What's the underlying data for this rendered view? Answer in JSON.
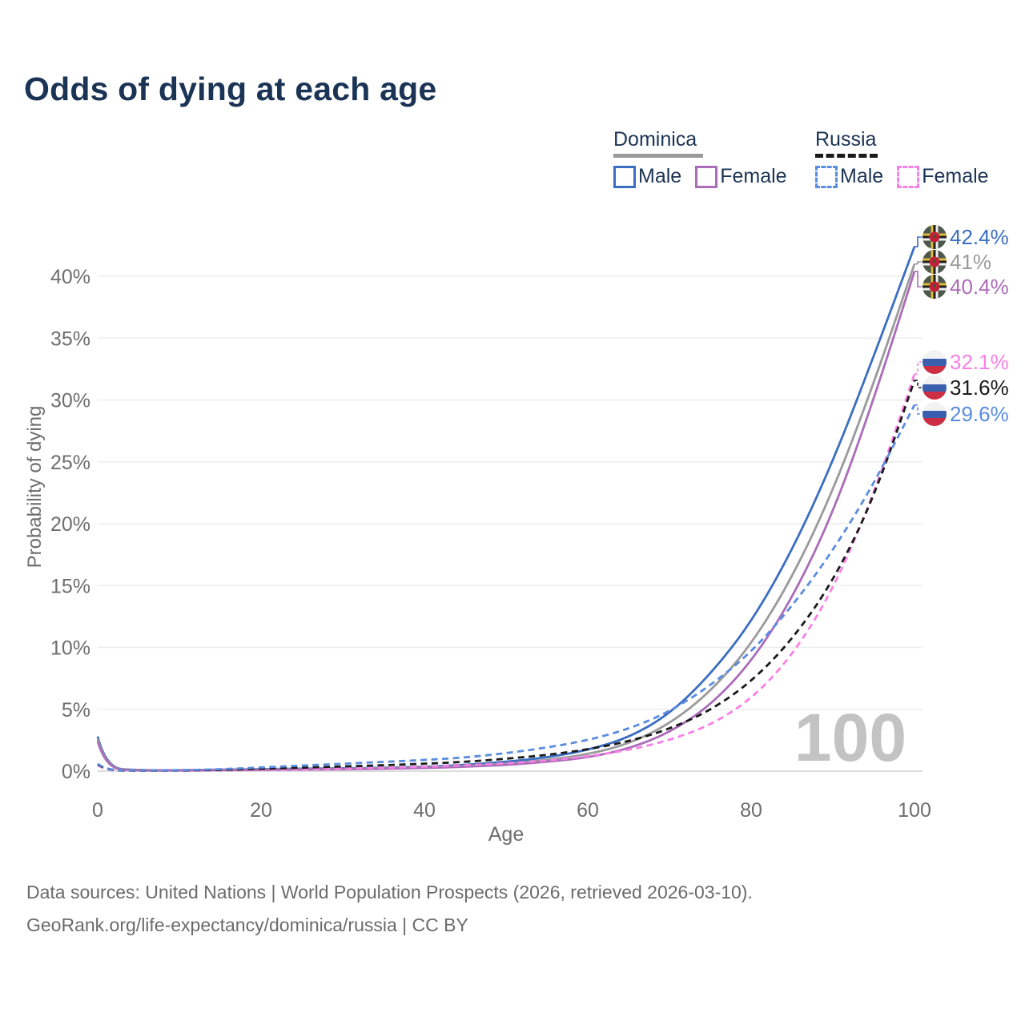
{
  "title": "Odds of dying at each age",
  "watermark": "100",
  "legend": {
    "groups": [
      {
        "country": "Dominica",
        "line_style": "solid",
        "underline_color": "#9a9a9a",
        "items": [
          {
            "label": "Male",
            "color": "#3b6ec1"
          },
          {
            "label": "Female",
            "color": "#ab6cb8"
          }
        ]
      },
      {
        "country": "Russia",
        "line_style": "dashed",
        "underline_color": "#1a1a1a",
        "items": [
          {
            "label": "Male",
            "color": "#5a8ce0"
          },
          {
            "label": "Female",
            "color": "#f980e6"
          }
        ]
      }
    ]
  },
  "chart_data": {
    "type": "line",
    "title": "Odds of dying at each age",
    "xlabel": "Age",
    "ylabel": "Probability of dying",
    "xlim": [
      0,
      100
    ],
    "ylim_percent": [
      0,
      43.5
    ],
    "grid": "horizontal",
    "x_ticks": [
      0,
      20,
      40,
      60,
      80,
      100
    ],
    "y_ticks_percent": [
      0,
      5,
      10,
      15,
      20,
      25,
      30,
      35,
      40
    ],
    "y_tick_labels": [
      "0%",
      "5%",
      "10%",
      "15%",
      "20%",
      "25%",
      "30%",
      "35%",
      "40%"
    ],
    "ages": [
      0,
      1,
      5,
      10,
      15,
      20,
      25,
      30,
      35,
      40,
      45,
      50,
      55,
      60,
      65,
      70,
      75,
      80,
      85,
      90,
      95,
      100
    ],
    "series": [
      {
        "name": "Dominica Male",
        "country": "Dominica",
        "flag": "dominica",
        "color": "#3b6ec1",
        "dash": false,
        "end_label": "42.4%",
        "end_value_percent": 42.4,
        "values_percent": [
          2.8,
          0.25,
          0.07,
          0.07,
          0.12,
          0.17,
          0.2,
          0.23,
          0.28,
          0.35,
          0.5,
          0.75,
          1.1,
          1.7,
          2.7,
          4.6,
          7.8,
          12.0,
          17.8,
          25.0,
          33.5,
          42.4
        ]
      },
      {
        "name": "Dominica Both sexes",
        "country": "Dominica",
        "flag": "dominica",
        "color": "#9a9a9a",
        "dash": false,
        "end_label": "41%",
        "end_value_percent": 41,
        "values_percent": [
          2.6,
          0.22,
          0.06,
          0.06,
          0.1,
          0.14,
          0.17,
          0.19,
          0.24,
          0.3,
          0.42,
          0.6,
          0.9,
          1.35,
          2.2,
          3.8,
          6.4,
          10.2,
          15.6,
          22.6,
          31.3,
          41.0
        ]
      },
      {
        "name": "Dominica Female",
        "country": "Dominica",
        "flag": "dominica",
        "color": "#ab6cb8",
        "dash": false,
        "end_label": "40.4%",
        "end_value_percent": 40.4,
        "values_percent": [
          2.4,
          0.2,
          0.05,
          0.05,
          0.08,
          0.1,
          0.13,
          0.15,
          0.19,
          0.25,
          0.35,
          0.5,
          0.75,
          1.1,
          1.8,
          3.1,
          5.3,
          8.8,
          13.9,
          20.8,
          30.0,
          40.4
        ]
      },
      {
        "name": "Russia Female",
        "country": "Russia",
        "flag": "russia",
        "color": "#f980e6",
        "dash": true,
        "end_label": "32.1%",
        "end_value_percent": 32.1,
        "values_percent": [
          0.5,
          0.06,
          0.03,
          0.04,
          0.07,
          0.1,
          0.15,
          0.2,
          0.27,
          0.35,
          0.47,
          0.63,
          0.85,
          1.2,
          1.7,
          2.5,
          3.7,
          5.8,
          9.3,
          14.6,
          22.3,
          32.1
        ]
      },
      {
        "name": "Russia Both sexes",
        "country": "Russia",
        "flag": "russia",
        "color": "#1a1a1a",
        "dash": true,
        "end_label": "31.6%",
        "end_value_percent": 31.6,
        "values_percent": [
          0.55,
          0.07,
          0.04,
          0.05,
          0.1,
          0.19,
          0.28,
          0.38,
          0.48,
          0.6,
          0.75,
          1.0,
          1.3,
          1.75,
          2.4,
          3.4,
          4.9,
          7.2,
          10.6,
          15.3,
          22.0,
          31.6
        ]
      },
      {
        "name": "Russia Male",
        "country": "Russia",
        "flag": "russia",
        "color": "#5a8ce0",
        "dash": true,
        "end_label": "29.6%",
        "end_value_percent": 29.6,
        "values_percent": [
          0.6,
          0.08,
          0.05,
          0.07,
          0.15,
          0.3,
          0.45,
          0.6,
          0.75,
          0.9,
          1.1,
          1.45,
          1.9,
          2.5,
          3.4,
          4.8,
          6.9,
          9.6,
          13.3,
          17.8,
          23.2,
          29.6
        ]
      }
    ]
  },
  "footer": {
    "line1": "Data sources: United Nations | World Population Prospects (2026, retrieved 2026-03-10).",
    "line2": "GeoRank.org/life-expectancy/dominica/russia | CC BY"
  }
}
